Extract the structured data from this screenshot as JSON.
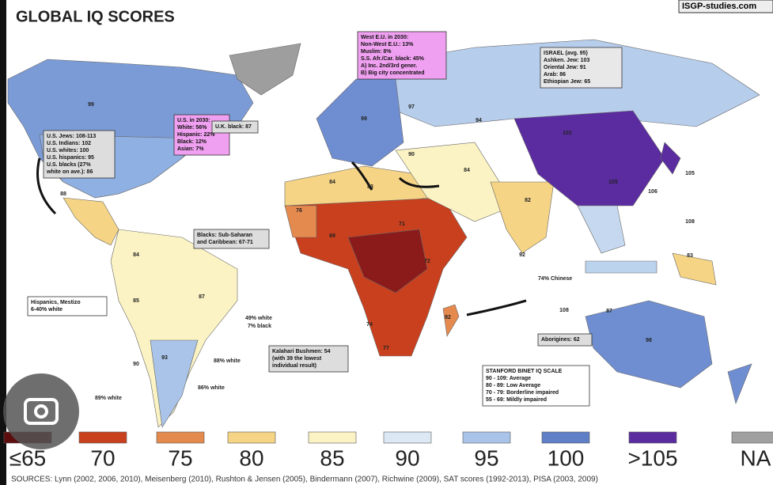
{
  "header": {
    "title": "GLOBAL IQ SCORES",
    "site": "ISGP-studies.com"
  },
  "boxes": {
    "west_eu": {
      "lines": [
        "West E.U. in 2030:",
        "Non-West E.U.: 13%",
        "Muslim: 8%",
        "S.S. Afr./Car. black: 45%",
        "A) Inc. 2nd/3rd gener.",
        "B) Big city concentrated"
      ]
    },
    "israel": {
      "lines": [
        "ISRAEL (avg. 95)",
        "Ashken. Jew: 103",
        "Oriental Jew: 91",
        "Arab: 86",
        "Ethiopian Jew: 65"
      ]
    },
    "us_2030": {
      "lines": [
        "U.S. in 2030:",
        "White: 56%",
        "Hispanic: 22%",
        "Black: 12%",
        "Asian: 7%"
      ]
    },
    "us_groups": {
      "lines": [
        "U.S. Jews: 108-113",
        "U.S. Indians: 102",
        "U.S. whites: 100",
        "U.S. hispanics: 95",
        "U.S. blacks (27%",
        "white on ave.): 86"
      ]
    },
    "uk_black": {
      "lines": [
        "U.K. black: 87"
      ]
    },
    "blacks": {
      "lines": [
        "Blacks: Sub-Saharan",
        "and Caribbean: 67-71"
      ]
    },
    "hispanics": {
      "lines": [
        "Hispanics, Mestizo",
        "6-40% white"
      ]
    },
    "kalahari": {
      "lines": [
        "Kalahari Bushmen: 54",
        "(with 39 the lowest",
        "individual result)"
      ]
    },
    "aborigines": {
      "lines": [
        "Aborigines: 62"
      ]
    },
    "stanford": {
      "lines": [
        "STANFORD BINET IQ SCALE",
        "90 - 109:   Average",
        "80 - 89:   Low Average",
        "70 - 79:   Borderline impaired",
        "55 - 69:   Mildly impaired"
      ]
    }
  },
  "annotations": [
    "74% Chinese",
    "49% white",
    "7% black",
    "88% white",
    "86% white",
    "89% white"
  ],
  "map_labels": [
    "99",
    "98",
    "88",
    "84",
    "87",
    "85",
    "93",
    "90",
    "97",
    "99",
    "94",
    "101",
    "105",
    "83",
    "84",
    "76",
    "69",
    "71",
    "72",
    "74",
    "77",
    "82",
    "84",
    "82",
    "87",
    "98",
    "83",
    "108",
    "92",
    "90",
    "105",
    "106",
    "108"
  ],
  "legend": [
    {
      "label": "≤65",
      "color": "#5c0d0d"
    },
    {
      "label": "70",
      "color": "#c9401e"
    },
    {
      "label": "75",
      "color": "#e58a4e"
    },
    {
      "label": "80",
      "color": "#f5d485"
    },
    {
      "label": "85",
      "color": "#fbf3c4"
    },
    {
      "label": "90",
      "color": "#dce9f5"
    },
    {
      "label": "95",
      "color": "#a9c4e8"
    },
    {
      "label": "100",
      "color": "#5f7fc7"
    },
    {
      "label": ">105",
      "color": "#5b2ca0"
    },
    {
      "label": "NA",
      "color": "#a0a0a0"
    }
  ],
  "sources": "SOURCES: Lynn (2002, 2006, 2010), Meisenberg (2010), Rushton & Jensen (2005), Bindermann (2007), Richwine (2009), SAT scores (1992-2013), PISA (2003, 2009)"
}
